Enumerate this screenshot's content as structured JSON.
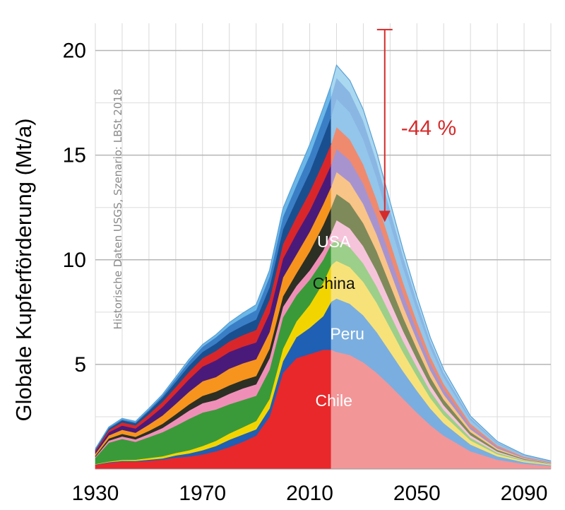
{
  "chart_data": {
    "type": "area",
    "title": "",
    "xlabel": "",
    "ylabel": "Globale Kupferförderung (Mt/a)",
    "source_note": "Historische Daten USGS, Szenario: LBSt 2018",
    "xlim": [
      1930,
      2100
    ],
    "ylim": [
      0,
      21.3
    ],
    "x_ticks": [
      "1930",
      "1970",
      "2010",
      "2050",
      "2090"
    ],
    "y_ticks": [
      "5",
      "10",
      "15",
      "20"
    ],
    "grid": true,
    "historical_end_year": 2018,
    "x": [
      1930,
      1935,
      1940,
      1945,
      1950,
      1955,
      1960,
      1965,
      1970,
      1975,
      1980,
      1985,
      1990,
      1995,
      2000,
      2005,
      2010,
      2015,
      2018,
      2020,
      2025,
      2030,
      2035,
      2040,
      2045,
      2050,
      2055,
      2060,
      2070,
      2080,
      2090,
      2100
    ],
    "series": [
      {
        "name": "Chile",
        "color": "#e8282b",
        "color_projection": "#f29698",
        "values": [
          0.2,
          0.3,
          0.35,
          0.35,
          0.4,
          0.45,
          0.55,
          0.6,
          0.7,
          0.85,
          1.05,
          1.3,
          1.6,
          2.5,
          4.6,
          5.3,
          5.5,
          5.7,
          5.7,
          5.6,
          5.45,
          5.1,
          4.6,
          4.0,
          3.35,
          2.7,
          2.1,
          1.6,
          0.85,
          0.45,
          0.25,
          0.15
        ]
      },
      {
        "name": "Peru",
        "color": "#1f5fb4",
        "color_projection": "#7aaee0",
        "values": [
          0.02,
          0.03,
          0.04,
          0.04,
          0.05,
          0.06,
          0.1,
          0.15,
          0.2,
          0.25,
          0.35,
          0.35,
          0.3,
          0.4,
          0.55,
          1.0,
          1.25,
          1.6,
          2.3,
          2.55,
          2.45,
          2.25,
          1.95,
          1.6,
          1.3,
          1.05,
          0.8,
          0.6,
          0.32,
          0.16,
          0.08,
          0.04
        ]
      },
      {
        "name": "",
        "color": "#f2d500",
        "color_projection": "#f7e27a",
        "values": [
          0.02,
          0.03,
          0.05,
          0.06,
          0.08,
          0.1,
          0.12,
          0.15,
          0.2,
          0.25,
          0.3,
          0.35,
          0.4,
          0.45,
          0.6,
          0.75,
          1.1,
          1.6,
          1.75,
          1.8,
          1.75,
          1.6,
          1.4,
          1.15,
          0.9,
          0.7,
          0.5,
          0.38,
          0.2,
          0.1,
          0.05,
          0.03
        ]
      },
      {
        "name": "",
        "color": "#3a9a3a",
        "color_projection": "#9ccf8a",
        "values": [
          0.3,
          0.9,
          1.0,
          0.85,
          1.0,
          1.15,
          1.3,
          1.5,
          1.6,
          1.5,
          1.4,
          1.3,
          1.2,
          1.4,
          1.5,
          1.25,
          1.2,
          1.1,
          1.0,
          1.0,
          0.95,
          0.88,
          0.78,
          0.66,
          0.54,
          0.43,
          0.33,
          0.25,
          0.13,
          0.07,
          0.04,
          0.02
        ]
      },
      {
        "name": "",
        "color": "#ef8fb8",
        "color_projection": "#f6c4da",
        "values": [
          0.05,
          0.1,
          0.12,
          0.12,
          0.15,
          0.2,
          0.3,
          0.4,
          0.45,
          0.45,
          0.5,
          0.55,
          0.55,
          0.55,
          0.5,
          0.45,
          0.45,
          0.45,
          0.55,
          0.95,
          0.9,
          0.82,
          0.72,
          0.6,
          0.48,
          0.38,
          0.29,
          0.22,
          0.12,
          0.06,
          0.03,
          0.02
        ]
      },
      {
        "name": "",
        "color": "#2c2f24",
        "color_projection": "#7f8a5a",
        "values": [
          0.05,
          0.1,
          0.12,
          0.12,
          0.15,
          0.2,
          0.25,
          0.3,
          0.35,
          0.4,
          0.4,
          0.4,
          0.4,
          0.45,
          0.5,
          0.6,
          0.9,
          1.2,
          1.2,
          1.25,
          1.2,
          1.1,
          0.96,
          0.8,
          0.64,
          0.5,
          0.38,
          0.28,
          0.15,
          0.08,
          0.04,
          0.02
        ]
      },
      {
        "name": "",
        "color": "#f7941d",
        "color_projection": "#f9c487",
        "values": [
          0.1,
          0.15,
          0.2,
          0.2,
          0.3,
          0.4,
          0.5,
          0.6,
          0.7,
          0.7,
          0.8,
          0.8,
          0.8,
          0.8,
          0.9,
          0.9,
          0.95,
          1.0,
          1.0,
          1.05,
          1.0,
          0.92,
          0.8,
          0.67,
          0.54,
          0.42,
          0.32,
          0.24,
          0.13,
          0.07,
          0.03,
          0.02
        ]
      },
      {
        "name": "",
        "color": "#4a1a7a",
        "color_projection": "#a794cf",
        "values": [
          0.1,
          0.15,
          0.2,
          0.2,
          0.3,
          0.4,
          0.5,
          0.6,
          0.7,
          0.8,
          0.8,
          0.8,
          0.8,
          0.9,
          0.9,
          1.0,
          1.0,
          1.05,
          1.05,
          1.1,
          1.05,
          0.97,
          0.85,
          0.71,
          0.58,
          0.45,
          0.34,
          0.26,
          0.14,
          0.07,
          0.04,
          0.02
        ]
      },
      {
        "name": "",
        "color": "#d9262b",
        "color_projection": "#ef8a6f",
        "values": [
          0.05,
          0.1,
          0.15,
          0.15,
          0.2,
          0.25,
          0.3,
          0.35,
          0.4,
          0.45,
          0.5,
          0.55,
          0.6,
          0.65,
          0.7,
          0.8,
          0.9,
          0.95,
          1.0,
          1.05,
          1.0,
          0.92,
          0.8,
          0.67,
          0.54,
          0.42,
          0.32,
          0.24,
          0.13,
          0.07,
          0.03,
          0.02
        ]
      },
      {
        "name": "",
        "color": "#1a4f8f",
        "color_projection": "#93c6ea",
        "values": [
          0.03,
          0.07,
          0.1,
          0.1,
          0.15,
          0.2,
          0.25,
          0.3,
          0.3,
          0.35,
          0.4,
          0.45,
          0.5,
          0.6,
          0.7,
          0.8,
          0.95,
          1.2,
          1.3,
          1.35,
          1.3,
          1.2,
          1.05,
          0.88,
          0.71,
          0.56,
          0.42,
          0.32,
          0.17,
          0.09,
          0.05,
          0.02
        ]
      },
      {
        "name": "",
        "color": "#3a7ec6",
        "color_projection": "#8ab6e4",
        "values": [
          0.03,
          0.05,
          0.05,
          0.05,
          0.07,
          0.1,
          0.15,
          0.2,
          0.25,
          0.3,
          0.35,
          0.4,
          0.45,
          0.5,
          0.6,
          0.7,
          0.8,
          0.9,
          0.95,
          1.0,
          0.95,
          0.88,
          0.77,
          0.64,
          0.52,
          0.41,
          0.31,
          0.23,
          0.12,
          0.06,
          0.03,
          0.02
        ]
      },
      {
        "name": "",
        "color": "#6bb7e8",
        "color_projection": "#a9d8f0",
        "values": [
          0.02,
          0.03,
          0.04,
          0.04,
          0.05,
          0.05,
          0.08,
          0.1,
          0.1,
          0.12,
          0.15,
          0.2,
          0.25,
          0.3,
          0.4,
          0.45,
          0.5,
          0.5,
          0.55,
          0.6,
          0.57,
          0.53,
          0.46,
          0.38,
          0.31,
          0.24,
          0.18,
          0.14,
          0.07,
          0.04,
          0.02,
          0.01
        ]
      }
    ],
    "labels": [
      {
        "text": "USA",
        "x": 2019,
        "y": 10.6,
        "color": "#ffffff"
      },
      {
        "text": "China",
        "x": 2019,
        "y": 8.6,
        "color": "#111111"
      },
      {
        "text": "Peru",
        "x": 2024,
        "y": 6.2,
        "color": "#ffffff"
      },
      {
        "text": "Chile",
        "x": 2019,
        "y": 3.0,
        "color": "#ffffff"
      }
    ],
    "annotation": {
      "text": "-44 %",
      "color": "#d42b2b",
      "x": 2038,
      "y_from": 21.0,
      "y_to": 11.8
    }
  }
}
